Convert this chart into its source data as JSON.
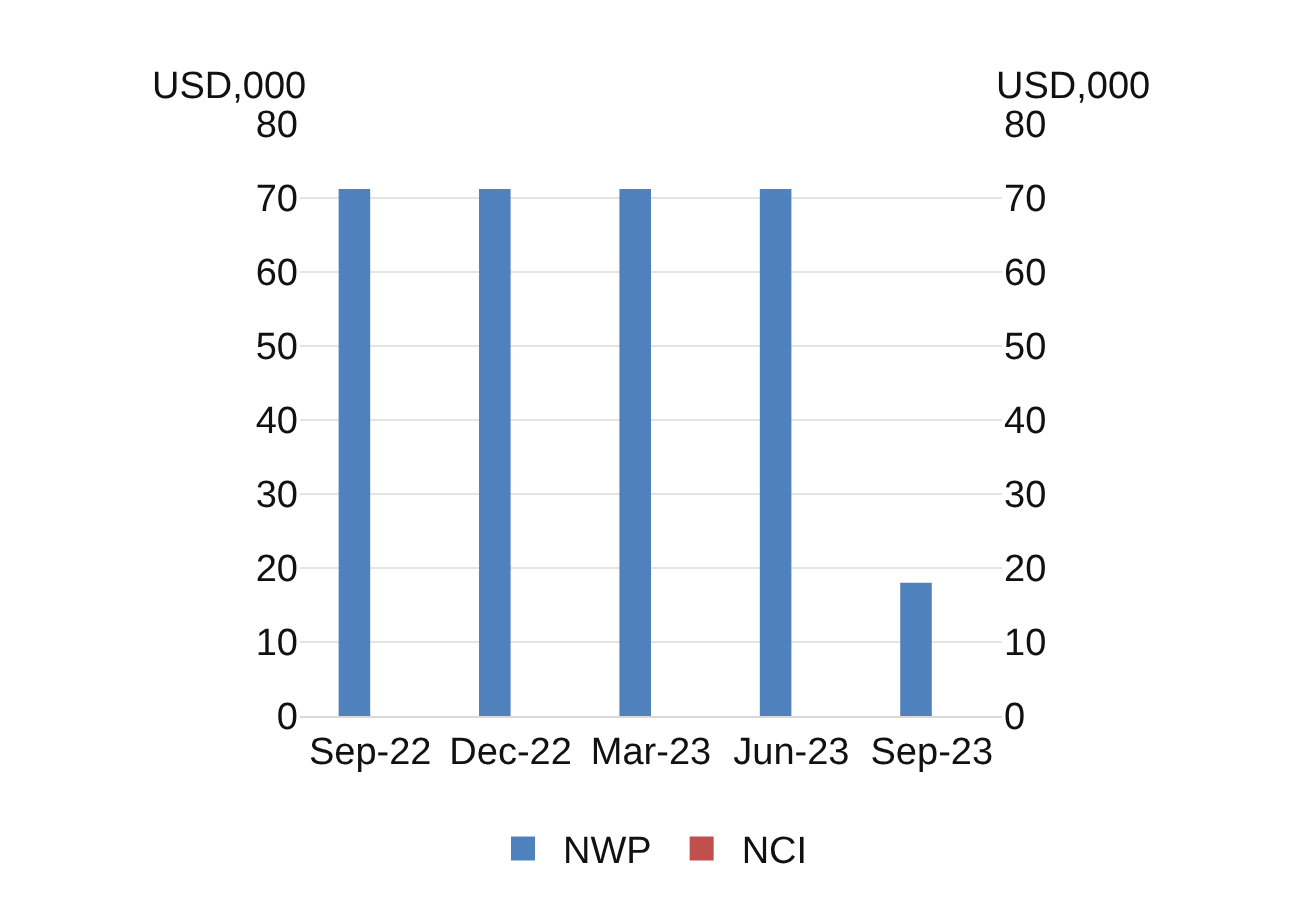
{
  "chart_data": {
    "type": "bar",
    "ylabel": "USD,000",
    "y2label": "USD,000",
    "categories": [
      "Sep-22",
      "Dec-22",
      "Mar-23",
      "Jun-23",
      "Sep-23"
    ],
    "series": [
      {
        "name": "NWP",
        "color": "#4f81bd",
        "values": [
          71.2,
          71.2,
          71.2,
          71.2,
          18
        ]
      },
      {
        "name": "NCI",
        "color": "#c0504d",
        "values": [
          0,
          0,
          0,
          0,
          0
        ],
        "axis": "y2"
      }
    ],
    "ylim": [
      0,
      80
    ],
    "yticks": [
      0,
      10,
      20,
      30,
      40,
      50,
      60,
      70,
      80
    ],
    "y2lim": [
      0,
      80
    ],
    "y2ticks": [
      0,
      10,
      20,
      30,
      40,
      50,
      60,
      70,
      80
    ],
    "grid": "y",
    "legend": "bottom"
  }
}
